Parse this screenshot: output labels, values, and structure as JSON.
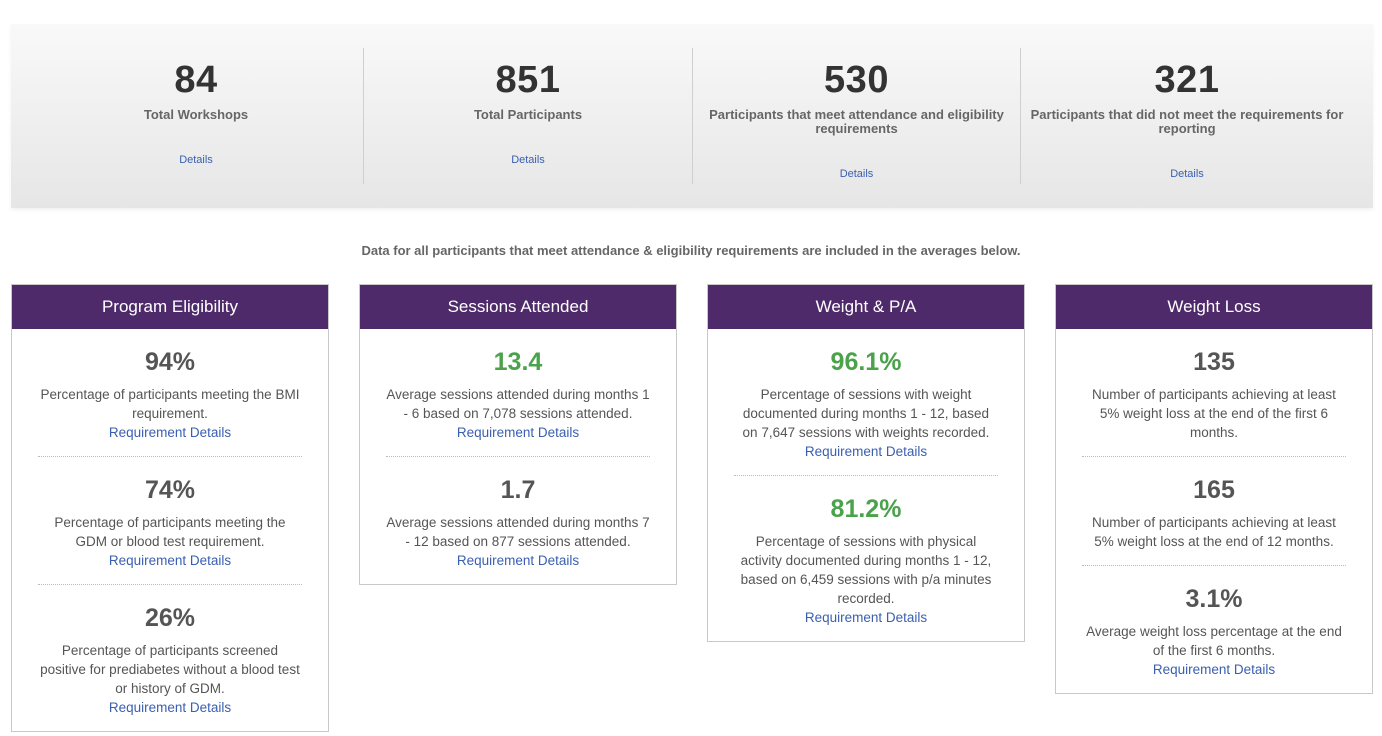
{
  "summary": [
    {
      "value": "84",
      "label": "Total Workshops",
      "link": "Details"
    },
    {
      "value": "851",
      "label": "Total Participants",
      "link": "Details"
    },
    {
      "value": "530",
      "label": "Participants that meet attendance and eligibility requirements",
      "link": "Details"
    },
    {
      "value": "321",
      "label": "Participants that did not meet the requirements for reporting",
      "link": "Details"
    }
  ],
  "note": "Data for all participants that meet attendance & eligibility requirements are included in the averages below.",
  "cards": [
    {
      "title": "Program Eligibility",
      "metrics": [
        {
          "value": "94%",
          "desc": "Percentage of participants meeting the BMI requirement.",
          "link": "Requirement Details"
        },
        {
          "value": "74%",
          "desc": "Percentage of participants meeting the GDM or blood test requirement.",
          "link": "Requirement Details"
        },
        {
          "value": "26%",
          "desc": "Percentage of participants screened positive for prediabetes without a blood test or history of GDM.",
          "link": "Requirement Details"
        }
      ]
    },
    {
      "title": "Sessions Attended",
      "metrics": [
        {
          "value": "13.4",
          "desc": "Average sessions attended during months 1 - 6 based on 7,078 sessions attended.",
          "link": "Requirement Details"
        },
        {
          "value": "1.7",
          "desc": "Average sessions attended during months 7 - 12 based on 877 sessions attended.",
          "link": "Requirement Details"
        }
      ]
    },
    {
      "title": "Weight & P/A",
      "metrics": [
        {
          "value": "96.1%",
          "desc": "Percentage of sessions with weight documented during months 1 - 12, based on 7,647 sessions with weights recorded.",
          "link": "Requirement Details"
        },
        {
          "value": "81.2%",
          "desc": "Percentage of sessions with physical activity documented during months 1 - 12, based on 6,459 sessions with p/a minutes recorded.",
          "link": "Requirement Details"
        }
      ]
    },
    {
      "title": "Weight Loss",
      "metrics": [
        {
          "value": "135",
          "desc": "Number of participants achieving at least 5% weight loss at the end of the first 6 months.",
          "link": ""
        },
        {
          "value": "165",
          "desc": "Number of participants achieving at least 5% weight loss at the end of 12 months.",
          "link": ""
        },
        {
          "value": "3.1%",
          "desc": "Average weight loss percentage at the end of the first 6 months.",
          "link": "Requirement Details"
        }
      ]
    }
  ],
  "colors": {
    "header": "#4f2a6a",
    "success": "#4aa24a",
    "link": "#3a5fb0"
  }
}
